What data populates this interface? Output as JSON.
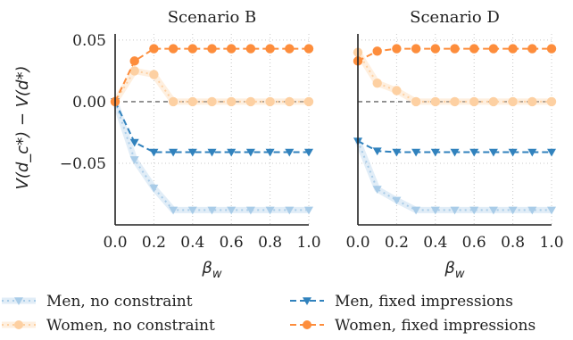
{
  "chart_data": [
    {
      "type": "line",
      "title": "Scenario B",
      "xlabel": "β_w",
      "ylabel": "V(d_c*) − V(d*)",
      "xlim": [
        0.0,
        1.0
      ],
      "ylim": [
        -0.1,
        0.055
      ],
      "xticks": [
        "0.0",
        "0.2",
        "0.4",
        "0.6",
        "0.8",
        "1.0"
      ],
      "yticks": [
        "0.05",
        "0.00",
        "−0.05"
      ],
      "ytick_values": [
        0.05,
        0.0,
        -0.05
      ],
      "grid": true,
      "series": [
        {
          "name": "Men, no constraint",
          "x": [
            0.0,
            0.1,
            0.2,
            0.3,
            0.4,
            0.5,
            0.6,
            0.7,
            0.8,
            0.9,
            1.0
          ],
          "values": [
            0.0,
            -0.047,
            -0.07,
            -0.088,
            -0.088,
            -0.088,
            -0.088,
            -0.088,
            -0.088,
            -0.088,
            -0.088
          ]
        },
        {
          "name": "Women, no constraint",
          "x": [
            0.0,
            0.1,
            0.2,
            0.3,
            0.4,
            0.5,
            0.6,
            0.7,
            0.8,
            0.9,
            1.0
          ],
          "values": [
            0.0,
            0.025,
            0.022,
            0.0,
            0.0,
            0.0,
            0.0,
            0.0,
            0.0,
            0.0,
            0.0
          ]
        },
        {
          "name": "Men, fixed impressions",
          "x": [
            0.0,
            0.1,
            0.2,
            0.3,
            0.4,
            0.5,
            0.6,
            0.7,
            0.8,
            0.9,
            1.0
          ],
          "values": [
            0.0,
            -0.033,
            -0.041,
            -0.041,
            -0.041,
            -0.041,
            -0.041,
            -0.041,
            -0.041,
            -0.041,
            -0.041
          ]
        },
        {
          "name": "Women, fixed impressions",
          "x": [
            0.0,
            0.1,
            0.2,
            0.3,
            0.4,
            0.5,
            0.6,
            0.7,
            0.8,
            0.9,
            1.0
          ],
          "values": [
            0.0,
            0.033,
            0.043,
            0.043,
            0.043,
            0.043,
            0.043,
            0.043,
            0.043,
            0.043,
            0.043
          ]
        }
      ]
    },
    {
      "type": "line",
      "title": "Scenario D",
      "xlabel": "β_w",
      "xlim": [
        0.0,
        1.0
      ],
      "ylim": [
        -0.1,
        0.055
      ],
      "xticks": [
        "0.0",
        "0.2",
        "0.4",
        "0.6",
        "0.8",
        "1.0"
      ],
      "grid": true,
      "series": [
        {
          "name": "Men, no constraint",
          "x": [
            0.0,
            0.1,
            0.2,
            0.3,
            0.4,
            0.5,
            0.6,
            0.7,
            0.8,
            0.9,
            1.0
          ],
          "values": [
            -0.032,
            -0.071,
            -0.08,
            -0.088,
            -0.088,
            -0.088,
            -0.088,
            -0.088,
            -0.088,
            -0.088,
            -0.088
          ]
        },
        {
          "name": "Women, no constraint",
          "x": [
            0.0,
            0.1,
            0.2,
            0.3,
            0.4,
            0.5,
            0.6,
            0.7,
            0.8,
            0.9,
            1.0
          ],
          "values": [
            0.04,
            0.015,
            0.009,
            0.0,
            0.0,
            0.0,
            0.0,
            0.0,
            0.0,
            0.0,
            0.0
          ]
        },
        {
          "name": "Men, fixed impressions",
          "x": [
            0.0,
            0.1,
            0.2,
            0.3,
            0.4,
            0.5,
            0.6,
            0.7,
            0.8,
            0.9,
            1.0
          ],
          "values": [
            -0.032,
            -0.04,
            -0.041,
            -0.041,
            -0.041,
            -0.041,
            -0.041,
            -0.041,
            -0.041,
            -0.041,
            -0.041
          ]
        },
        {
          "name": "Women, fixed impressions",
          "x": [
            0.0,
            0.1,
            0.2,
            0.3,
            0.4,
            0.5,
            0.6,
            0.7,
            0.8,
            0.9,
            1.0
          ],
          "values": [
            0.033,
            0.041,
            0.043,
            0.043,
            0.043,
            0.043,
            0.043,
            0.043,
            0.043,
            0.043,
            0.043
          ]
        }
      ]
    }
  ],
  "legend": {
    "items": [
      {
        "label": "Men, no constraint",
        "key": "men_nc"
      },
      {
        "label": "Women, no constraint",
        "key": "women_nc"
      },
      {
        "label": "Men, fixed impressions",
        "key": "men_fi"
      },
      {
        "label": "Women, fixed impressions",
        "key": "women_fi"
      }
    ]
  },
  "colors": {
    "men_nc": "#a9cce8",
    "women_nc": "#fdd0a2",
    "men_fi": "#3182bd",
    "women_fi": "#fd8d3c",
    "grid": "#c8c8c8",
    "zero_line": "#666666",
    "axis": "#222222"
  }
}
